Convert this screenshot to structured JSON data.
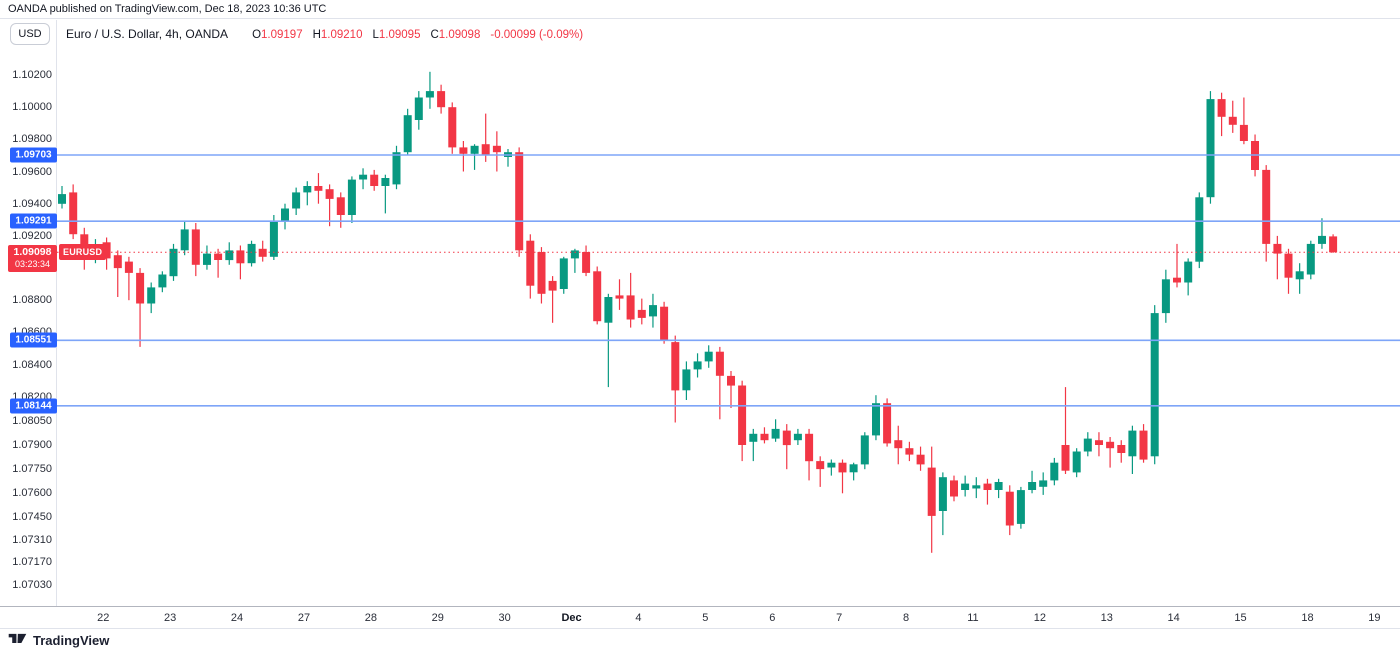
{
  "topbar": {
    "text": "OANDA published on TradingView.com, Dec 18, 2023 10:36 UTC"
  },
  "header": {
    "currency_button": "USD",
    "symbol_title": "Euro / U.S. Dollar, 4h, OANDA",
    "ohlc": [
      {
        "label": "O",
        "value": "1.09197"
      },
      {
        "label": "H",
        "value": "1.09210"
      },
      {
        "label": "L",
        "value": "1.09095"
      },
      {
        "label": "C",
        "value": "1.09098"
      }
    ],
    "change": "-0.00099 (-0.09%)"
  },
  "footer": {
    "brand": "TradingView"
  },
  "chart_data": {
    "type": "candlestick",
    "symbol": "EURUSD",
    "title": "Euro / U.S. Dollar, 4h, OANDA",
    "exchange": "OANDA",
    "timeframe": "4h",
    "colors": {
      "up": "#089981",
      "down": "#f23645",
      "level_line": "#7ea5f8",
      "level_label_bg": "#2962ff",
      "last_price_line": "#f23645",
      "axis_text": "#2a2e39"
    },
    "y_axis": {
      "ticks": [
        "1.10200",
        "1.10000",
        "1.09800",
        "1.09600",
        "1.09400",
        "1.09200",
        "1.09000",
        "1.08800",
        "1.08600",
        "1.08400",
        "1.08200",
        "1.08050",
        "1.07900",
        "1.07750",
        "1.07600",
        "1.07450",
        "1.07310",
        "1.07170",
        "1.07030"
      ],
      "range_top": 1.102,
      "range_bottom": 1.0703
    },
    "x_axis": {
      "labels": [
        "22",
        "23",
        "24",
        "27",
        "28",
        "29",
        "30",
        "Dec",
        "4",
        "5",
        "6",
        "7",
        "8",
        "11",
        "12",
        "13",
        "14",
        "15",
        "18",
        "19"
      ],
      "month_label": "Dec"
    },
    "levels": [
      {
        "price": 1.09703,
        "label": "1.09703"
      },
      {
        "price": 1.09291,
        "label": "1.09291"
      },
      {
        "price": 1.08551,
        "label": "1.08551"
      },
      {
        "price": 1.08144,
        "label": "1.08144"
      }
    ],
    "last": {
      "price": 1.09098,
      "label": "1.09098",
      "countdown": "03:23:34",
      "tag": "EURUSD"
    },
    "candles": [
      [
        1.094,
        1.0951,
        1.0937,
        1.0946
      ],
      [
        1.0947,
        1.0952,
        1.0918,
        1.0921
      ],
      [
        1.0921,
        1.0925,
        1.0899,
        1.0906
      ],
      [
        1.0906,
        1.0918,
        1.0903,
        1.0913
      ],
      [
        1.0916,
        1.0919,
        1.0899,
        1.0906
      ],
      [
        1.0908,
        1.0911,
        1.0882,
        1.09
      ],
      [
        1.0904,
        1.0907,
        1.088,
        1.0897
      ],
      [
        1.0897,
        1.09,
        1.0851,
        1.0878
      ],
      [
        1.0878,
        1.0891,
        1.0872,
        1.0888
      ],
      [
        1.0888,
        1.0898,
        1.0885,
        1.0896
      ],
      [
        1.0895,
        1.0915,
        1.0892,
        1.0912
      ],
      [
        1.0911,
        1.0929,
        1.0908,
        1.0924
      ],
      [
        1.0924,
        1.0928,
        1.0895,
        1.0902
      ],
      [
        1.0902,
        1.0914,
        1.0899,
        1.0909
      ],
      [
        1.0909,
        1.0912,
        1.0894,
        1.0905
      ],
      [
        1.0905,
        1.0916,
        1.0902,
        1.0911
      ],
      [
        1.0911,
        1.0914,
        1.0893,
        1.0903
      ],
      [
        1.0903,
        1.0917,
        1.0901,
        1.0915
      ],
      [
        1.0912,
        1.0917,
        1.0904,
        1.0907
      ],
      [
        1.0907,
        1.0933,
        1.0905,
        1.0929
      ],
      [
        1.0929,
        1.094,
        1.0924,
        1.0937
      ],
      [
        1.0937,
        1.095,
        1.0933,
        1.0947
      ],
      [
        1.0947,
        1.0954,
        1.0939,
        1.0951
      ],
      [
        1.0951,
        1.0959,
        1.094,
        1.0948
      ],
      [
        1.0949,
        1.0952,
        1.0926,
        1.0943
      ],
      [
        1.0944,
        1.0947,
        1.0925,
        1.0933
      ],
      [
        1.0933,
        1.0957,
        1.0928,
        1.0955
      ],
      [
        1.0955,
        1.0962,
        1.0949,
        1.0958
      ],
      [
        1.0958,
        1.0961,
        1.0948,
        1.0951
      ],
      [
        1.0951,
        1.0958,
        1.0934,
        1.0956
      ],
      [
        1.0952,
        1.0976,
        1.0949,
        1.0972
      ],
      [
        1.0972,
        1.0999,
        1.097,
        1.0995
      ],
      [
        1.0992,
        1.101,
        1.0986,
        1.1006
      ],
      [
        1.1006,
        1.1022,
        1.0999,
        1.101
      ],
      [
        1.101,
        1.1014,
        1.0996,
        1.1
      ],
      [
        1.1,
        1.1003,
        1.0971,
        1.0975
      ],
      [
        1.0975,
        1.0979,
        1.096,
        1.0971
      ],
      [
        1.0971,
        1.0977,
        1.0961,
        1.0976
      ],
      [
        1.0977,
        1.0996,
        1.0966,
        1.097
      ],
      [
        1.0976,
        1.0985,
        1.096,
        1.0972
      ],
      [
        1.0969,
        1.0974,
        1.0963,
        1.0972
      ],
      [
        1.0972,
        1.0975,
        1.0907,
        1.0911
      ],
      [
        1.0917,
        1.0921,
        1.0881,
        1.0889
      ],
      [
        1.091,
        1.0913,
        1.0878,
        1.0884
      ],
      [
        1.0892,
        1.0895,
        1.0866,
        1.0886
      ],
      [
        1.0887,
        1.0907,
        1.0884,
        1.0906
      ],
      [
        1.0906,
        1.0912,
        1.0897,
        1.0911
      ],
      [
        1.091,
        1.0914,
        1.0895,
        1.0897
      ],
      [
        1.0898,
        1.0901,
        1.0865,
        1.0867
      ],
      [
        1.0866,
        1.0884,
        1.0826,
        1.0882
      ],
      [
        1.0883,
        1.0893,
        1.0874,
        1.0881
      ],
      [
        1.0883,
        1.0897,
        1.0863,
        1.0868
      ],
      [
        1.0874,
        1.0881,
        1.0865,
        1.0869
      ],
      [
        1.087,
        1.0884,
        1.0863,
        1.0877
      ],
      [
        1.0876,
        1.0879,
        1.0853,
        1.0855
      ],
      [
        1.0854,
        1.0858,
        1.0804,
        1.0824
      ],
      [
        1.0824,
        1.0842,
        1.0818,
        1.0837
      ],
      [
        1.0837,
        1.0847,
        1.0832,
        1.0842
      ],
      [
        1.0842,
        1.0852,
        1.0838,
        1.0848
      ],
      [
        1.0848,
        1.0851,
        1.0806,
        1.0833
      ],
      [
        1.0833,
        1.0836,
        1.0813,
        1.0827
      ],
      [
        1.0827,
        1.083,
        1.078,
        1.079
      ],
      [
        1.0792,
        1.08,
        1.078,
        1.0797
      ],
      [
        1.0797,
        1.0801,
        1.0791,
        1.0793
      ],
      [
        1.0794,
        1.0806,
        1.0792,
        1.08
      ],
      [
        1.0799,
        1.0803,
        1.0775,
        1.079
      ],
      [
        1.0793,
        1.08,
        1.079,
        1.0797
      ],
      [
        1.0797,
        1.08,
        1.0768,
        1.078
      ],
      [
        1.078,
        1.0783,
        1.0764,
        1.0775
      ],
      [
        1.0776,
        1.0781,
        1.0771,
        1.0779
      ],
      [
        1.0779,
        1.0781,
        1.076,
        1.0773
      ],
      [
        1.0773,
        1.0779,
        1.0768,
        1.0778
      ],
      [
        1.0778,
        1.0798,
        1.0775,
        1.0796
      ],
      [
        1.0796,
        1.0821,
        1.0793,
        1.0816
      ],
      [
        1.0816,
        1.0819,
        1.0789,
        1.0791
      ],
      [
        1.0793,
        1.0802,
        1.0778,
        1.0788
      ],
      [
        1.0788,
        1.0792,
        1.078,
        1.0784
      ],
      [
        1.0784,
        1.0789,
        1.0774,
        1.0778
      ],
      [
        1.0776,
        1.0789,
        1.0723,
        1.0746
      ],
      [
        1.0749,
        1.0773,
        1.0734,
        1.077
      ],
      [
        1.0768,
        1.0771,
        1.0755,
        1.0758
      ],
      [
        1.0762,
        1.0771,
        1.0758,
        1.0766
      ],
      [
        1.0763,
        1.077,
        1.0757,
        1.0765
      ],
      [
        1.0766,
        1.0769,
        1.0753,
        1.0762
      ],
      [
        1.0762,
        1.0769,
        1.0757,
        1.0767
      ],
      [
        1.0761,
        1.0765,
        1.0734,
        1.074
      ],
      [
        1.0741,
        1.0764,
        1.0738,
        1.0762
      ],
      [
        1.0762,
        1.0774,
        1.076,
        1.0767
      ],
      [
        1.0764,
        1.0773,
        1.0759,
        1.0768
      ],
      [
        1.0768,
        1.0782,
        1.0765,
        1.0779
      ],
      [
        1.079,
        1.0826,
        1.0772,
        1.0774
      ],
      [
        1.0773,
        1.0788,
        1.077,
        1.0786
      ],
      [
        1.0786,
        1.0798,
        1.0783,
        1.0794
      ],
      [
        1.0793,
        1.0798,
        1.0783,
        1.079
      ],
      [
        1.0792,
        1.0795,
        1.0776,
        1.0788
      ],
      [
        1.079,
        1.0793,
        1.0779,
        1.0785
      ],
      [
        1.0783,
        1.0802,
        1.0772,
        1.0799
      ],
      [
        1.0799,
        1.0803,
        1.0779,
        1.0781
      ],
      [
        1.0783,
        1.0877,
        1.0778,
        1.0872
      ],
      [
        1.0872,
        1.0899,
        1.0866,
        1.0893
      ],
      [
        1.0894,
        1.0915,
        1.0888,
        1.0891
      ],
      [
        1.0891,
        1.0906,
        1.0883,
        1.0904
      ],
      [
        1.0904,
        1.0947,
        1.09,
        1.0944
      ],
      [
        1.0944,
        1.101,
        1.094,
        1.1005
      ],
      [
        1.1005,
        1.1009,
        1.0982,
        1.0994
      ],
      [
        1.0994,
        1.1004,
        1.0984,
        1.0989
      ],
      [
        1.0989,
        1.1006,
        1.0977,
        1.0979
      ],
      [
        1.0979,
        1.0983,
        1.0957,
        1.0961
      ],
      [
        1.0961,
        1.0964,
        1.0904,
        1.0915
      ],
      [
        1.0915,
        1.092,
        1.0893,
        1.0909
      ],
      [
        1.0909,
        1.0912,
        1.0884,
        1.0894
      ],
      [
        1.0893,
        1.0903,
        1.0884,
        1.0898
      ],
      [
        1.0896,
        1.0917,
        1.0893,
        1.0915
      ],
      [
        1.0915,
        1.0931,
        1.0912,
        1.092
      ],
      [
        1.09197,
        1.0921,
        1.09095,
        1.09098
      ]
    ]
  }
}
